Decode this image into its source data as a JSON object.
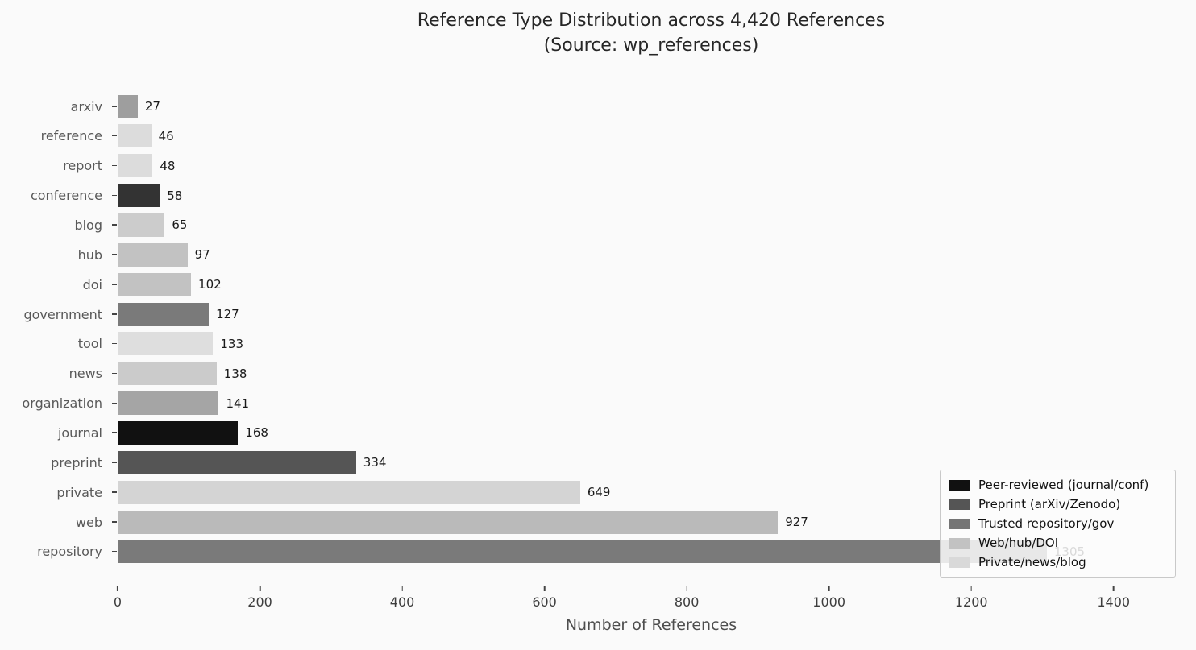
{
  "title": {
    "line1": "Reference Type Distribution across 4,420 References",
    "line2": "(Source: wp_references)"
  },
  "chart_data": {
    "type": "bar",
    "orientation": "horizontal",
    "title": "Reference Type Distribution across 4,420 References (Source: wp_references)",
    "xlabel": "Number of References",
    "ylabel": "",
    "xlim": [
      0,
      1500
    ],
    "x_ticks": [
      0,
      200,
      400,
      600,
      800,
      1000,
      1200,
      1400
    ],
    "grid": false,
    "categories": [
      "arxiv",
      "reference",
      "report",
      "conference",
      "blog",
      "hub",
      "doi",
      "government",
      "tool",
      "news",
      "organization",
      "journal",
      "preprint",
      "private",
      "web",
      "repository"
    ],
    "values": [
      27,
      46,
      48,
      58,
      65,
      97,
      102,
      127,
      133,
      138,
      141,
      168,
      334,
      649,
      927,
      1305
    ],
    "bar_colors": [
      "#9e9e9e",
      "#dcdcdc",
      "#dcdcdc",
      "#333333",
      "#cccccc",
      "#c2c2c2",
      "#c2c2c2",
      "#7a7a7a",
      "#dedede",
      "#cbcbcb",
      "#a5a5a5",
      "#111111",
      "#555555",
      "#d4d4d4",
      "#bababa",
      "#7a7a7a"
    ],
    "legend": {
      "position": "lower right",
      "entries": [
        {
          "label": "Peer-reviewed (journal/conf)",
          "color": "#111111"
        },
        {
          "label": "Preprint (arXiv/Zenodo)",
          "color": "#555555"
        },
        {
          "label": "Trusted repository/gov",
          "color": "#757575"
        },
        {
          "label": "Web/hub/DOI",
          "color": "#c2c2c2"
        },
        {
          "label": "Private/news/blog",
          "color": "#d9d9d9"
        }
      ]
    }
  },
  "colors": {
    "background": "#fafafa",
    "title_text": "#262626",
    "category_label": "#595959",
    "value_label": "#1a1a1a",
    "tick_label": "#3d3d3d",
    "axis_label": "#4d4d4d",
    "spine": "#cccccc",
    "legend_border": "#c9c9c9"
  }
}
